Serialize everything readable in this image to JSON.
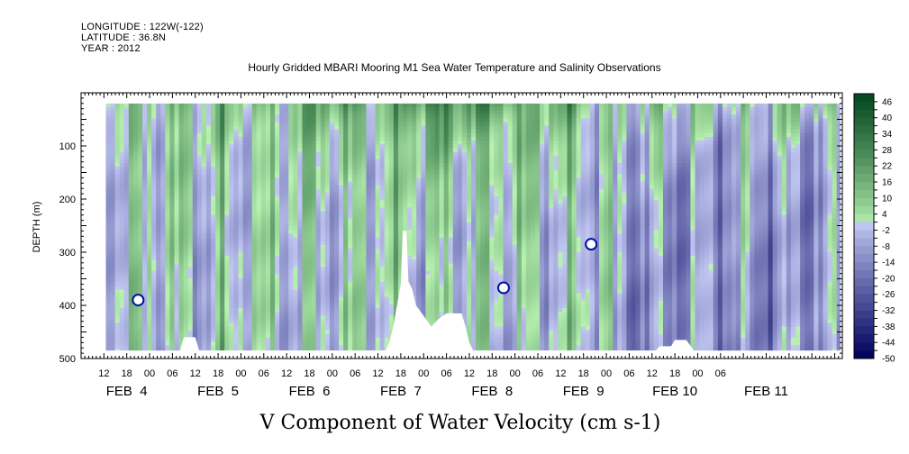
{
  "header": {
    "longitude": "LONGITUDE : 122W(-122)",
    "latitude": "LATITUDE : 36.8N",
    "year": "YEAR : 2012",
    "title": "Hourly Gridded MBARI Mooring M1 Sea Water Temperature and Salinity Observations"
  },
  "chart_data": {
    "type": "heatmap",
    "title": "V Component of Water Velocity (cm s-1)",
    "xlabel": "",
    "ylabel": "DEPTH (m)",
    "x_axis": {
      "unit": "hours since 2012-02-03 12:00",
      "range": [
        0,
        200
      ],
      "hour_ticks": [
        "12",
        "18",
        "00",
        "06",
        "12",
        "18",
        "00",
        "06",
        "12",
        "18",
        "00",
        "06",
        "12",
        "18",
        "00",
        "06",
        "12",
        "18",
        "00",
        "06",
        "12",
        "18",
        "00",
        "06",
        "12",
        "18",
        "00",
        "06"
      ],
      "day_labels": [
        {
          "label": "FEB  4",
          "hour": 12
        },
        {
          "label": "FEB  5",
          "hour": 36
        },
        {
          "label": "FEB  6",
          "hour": 60
        },
        {
          "label": "FEB  7",
          "hour": 84
        },
        {
          "label": "FEB  8",
          "hour": 108
        },
        {
          "label": "FEB  9",
          "hour": 132
        },
        {
          "label": "FEB 10",
          "hour": 156
        },
        {
          "label": "FEB 11",
          "hour": 180
        }
      ]
    },
    "y_axis": {
      "range": [
        500,
        0
      ],
      "inverted": true,
      "ticks": [
        100,
        200,
        300,
        400,
        500
      ],
      "data_range": [
        20,
        485
      ]
    },
    "colorbar": {
      "labels": [
        "46",
        "40",
        "34",
        "28",
        "22",
        "16",
        "10",
        "4",
        "-2",
        "-8",
        "-14",
        "-20",
        "-26",
        "-32",
        "-38",
        "-44",
        "-50"
      ],
      "min": -50,
      "max": 49,
      "step": 3
    },
    "missing_region_profile": [
      {
        "hour": 26,
        "depth": 485
      },
      {
        "hour": 27,
        "depth": 460
      },
      {
        "hour": 30,
        "depth": 460
      },
      {
        "hour": 31,
        "depth": 485
      },
      {
        "hour": 80,
        "depth": 485
      },
      {
        "hour": 81,
        "depth": 470
      },
      {
        "hour": 82,
        "depth": 440
      },
      {
        "hour": 83,
        "depth": 400
      },
      {
        "hour": 84,
        "depth": 360
      },
      {
        "hour": 84.5,
        "depth": 260
      },
      {
        "hour": 85.5,
        "depth": 260
      },
      {
        "hour": 86,
        "depth": 355
      },
      {
        "hour": 87,
        "depth": 370
      },
      {
        "hour": 88,
        "depth": 400
      },
      {
        "hour": 90,
        "depth": 420
      },
      {
        "hour": 92,
        "depth": 440
      },
      {
        "hour": 94,
        "depth": 425
      },
      {
        "hour": 96,
        "depth": 415
      },
      {
        "hour": 100,
        "depth": 415
      },
      {
        "hour": 101,
        "depth": 440
      },
      {
        "hour": 102,
        "depth": 470
      },
      {
        "hour": 103,
        "depth": 485
      },
      {
        "hour": 151,
        "depth": 485
      },
      {
        "hour": 152,
        "depth": 477
      },
      {
        "hour": 155,
        "depth": 477
      },
      {
        "hour": 156,
        "depth": 465
      },
      {
        "hour": 159,
        "depth": 465
      },
      {
        "hour": 160,
        "depth": 475
      },
      {
        "hour": 161,
        "depth": 485
      }
    ],
    "missing_spots": [
      {
        "hour": 15,
        "depth": 390
      },
      {
        "hour": 111,
        "depth": 367
      },
      {
        "hour": 134,
        "depth": 285
      }
    ]
  },
  "colors": {
    "positive_dark": "#00451c",
    "positive_light": "#b9f2b2",
    "negative_light": "#c2c8f2",
    "negative_dark": "#00005c"
  }
}
